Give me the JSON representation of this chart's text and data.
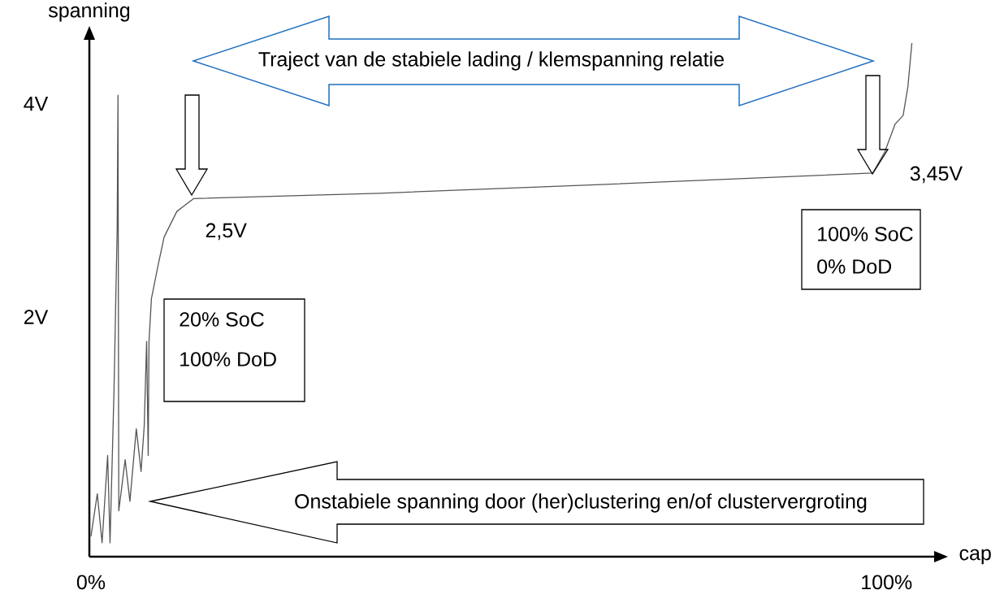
{
  "chart_data": {
    "type": "line",
    "xlabel": "cap",
    "ylabel": "spanning",
    "xlim": [
      -0.2,
      106
    ],
    "ylim": [
      -0.25,
      4.6
    ],
    "xticks": [
      {
        "value": 0,
        "label": "0%"
      },
      {
        "value": 100,
        "label": "100%"
      }
    ],
    "yticks": [
      {
        "value": 2,
        "label": "2V"
      },
      {
        "value": 4,
        "label": "4V"
      }
    ],
    "x": [
      0,
      0.8,
      1.4,
      2.1,
      2.4,
      2.9,
      3.1,
      3.3,
      3.4,
      3.5,
      4.3,
      4.9,
      5.7,
      6.3,
      6.7,
      7.0,
      7.2,
      7.3,
      7.6,
      8.4,
      9.2,
      10.8,
      12.9,
      36.2,
      63.4,
      98.3,
      99.8,
      101.1,
      102.1,
      102.7,
      103.2
    ],
    "series": [
      {
        "color": "#555555",
        "values": [
          -0.06,
          0.34,
          -0.12,
          0.7,
          -0.12,
          1.31,
          2.08,
          2.84,
          4.08,
          0.18,
          0.66,
          0.27,
          0.95,
          0.55,
          0.98,
          1.77,
          0.7,
          1.77,
          2.17,
          2.47,
          2.75,
          2.99,
          3.11,
          3.16,
          3.24,
          3.35,
          3.55,
          3.81,
          3.89,
          4.16,
          4.57
        ]
      }
    ],
    "annotations": [
      "Traject van de stabiele lading / klemspanning relatie",
      "Onstabiele spanning door (her)clustering en/of clustervergroting",
      {
        "text": "2,5V",
        "x": 12.9,
        "y": 3.11
      },
      {
        "text": "3,45V",
        "x": 98.3,
        "y": 3.35
      },
      "20% SoC",
      "100% DoD",
      "100% SoC",
      "0% DoD"
    ]
  }
}
